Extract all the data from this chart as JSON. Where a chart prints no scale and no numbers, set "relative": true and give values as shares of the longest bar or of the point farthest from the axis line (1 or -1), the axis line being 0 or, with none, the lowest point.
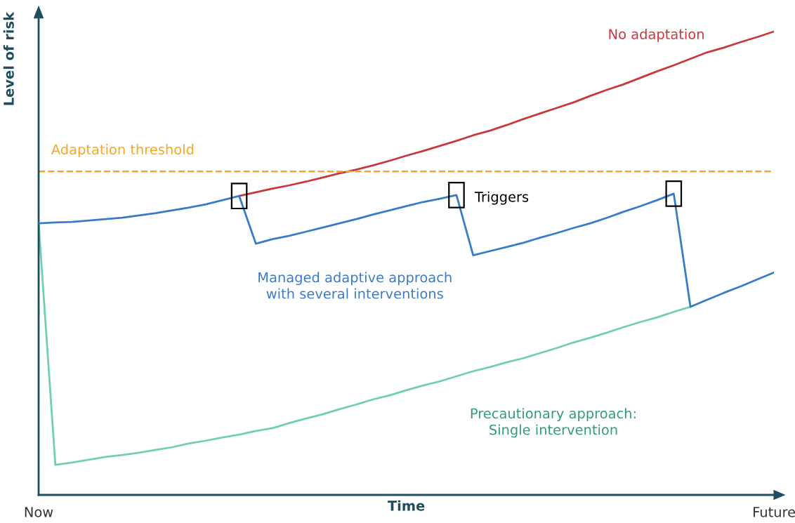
{
  "chart_data": {
    "type": "line",
    "relative": true,
    "xlabel": "Time",
    "ylabel": "Level of risk",
    "categories": [
      "Now",
      null,
      null,
      null,
      null,
      null,
      null,
      null,
      null,
      null,
      null,
      null,
      null,
      null,
      null,
      null,
      null,
      null,
      null,
      null,
      null,
      null,
      null,
      null,
      null,
      null,
      null,
      null,
      null,
      null,
      null,
      null,
      null,
      null,
      null,
      null,
      null,
      null,
      null,
      null,
      null,
      null,
      null,
      null,
      "Future"
    ],
    "tick_labels": "x",
    "grid": false,
    "legend": false,
    "marker": "none",
    "line_style": "solid",
    "series": [
      {
        "name": "No adaptation",
        "color": "#c8383e",
        "values": [
          null,
          null,
          null,
          null,
          null,
          null,
          null,
          null,
          null,
          null,
          null,
          null,
          0.645,
          0.653,
          0.661,
          0.668,
          0.676,
          0.685,
          0.694,
          0.702,
          0.711,
          0.721,
          0.732,
          0.742,
          0.753,
          0.764,
          0.776,
          0.786,
          0.798,
          0.811,
          0.823,
          0.835,
          0.847,
          0.861,
          0.874,
          0.886,
          0.9,
          0.914,
          0.927,
          0.941,
          0.955,
          0.965,
          0.977,
          0.988,
          1.0
        ]
      },
      {
        "name": "Managed adaptive approach\nwith several interventions",
        "color": "#3a7bc8",
        "values": [
          0.586,
          0.588,
          0.589,
          0.592,
          0.595,
          0.598,
          0.603,
          0.608,
          0.614,
          0.62,
          0.627,
          0.636,
          0.645,
          0.542,
          0.552,
          0.559,
          0.568,
          0.577,
          0.586,
          0.595,
          0.605,
          0.614,
          0.623,
          0.632,
          0.639,
          0.647,
          0.517,
          0.526,
          0.535,
          0.544,
          0.555,
          0.565,
          0.576,
          0.586,
          0.598,
          0.611,
          0.623,
          0.636,
          0.65,
          0.406,
          0.421,
          0.436,
          0.45,
          0.465,
          0.48
        ]
      },
      {
        "name": "Precautionary approach:\nSingle intervention",
        "color": "#6fcfb5",
        "values": [
          0.586,
          0.065,
          0.07,
          0.076,
          0.082,
          0.086,
          0.091,
          0.097,
          0.103,
          0.111,
          0.117,
          0.124,
          0.13,
          0.138,
          0.144,
          0.155,
          0.165,
          0.174,
          0.185,
          0.195,
          0.206,
          0.215,
          0.226,
          0.236,
          0.245,
          0.256,
          0.267,
          0.276,
          0.286,
          0.295,
          0.306,
          0.317,
          0.329,
          0.339,
          0.35,
          0.362,
          0.373,
          0.383,
          0.395,
          0.406,
          null,
          null,
          null,
          null,
          null
        ]
      }
    ],
    "ref_lines": [
      {
        "axis": "y",
        "value": 0.698,
        "label": "Adaptation threshold",
        "color": "#f5a623",
        "line_style": "dashed"
      }
    ],
    "annotations": [
      "Triggers"
    ]
  }
}
